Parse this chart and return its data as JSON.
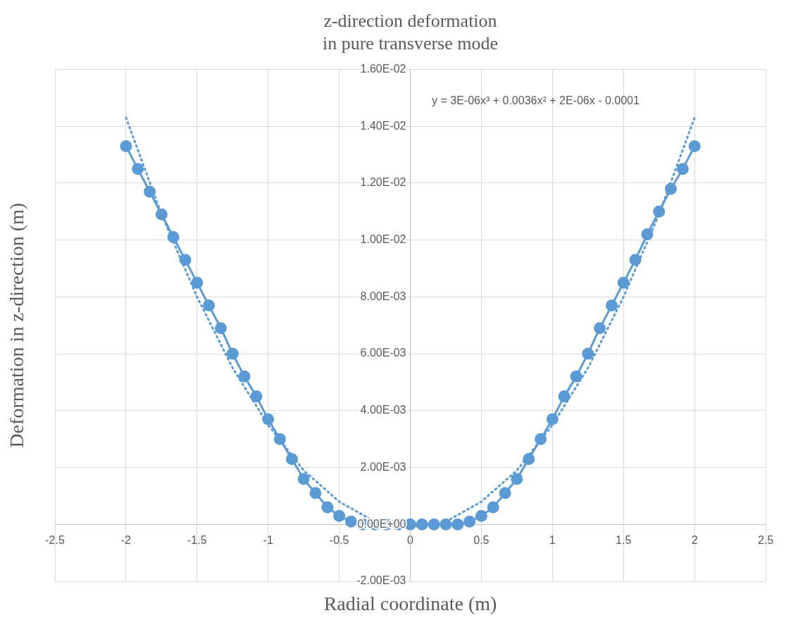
{
  "chart_data": {
    "type": "line",
    "title": "z-direction deformation\nin pure transverse mode",
    "xlabel": "Radial coordinate (m)",
    "ylabel": "Deformation in z-direction (m)",
    "annotations": [
      "y = 3E-06x³ + 0.0036x² + 2E-06x - 0.0001"
    ],
    "xlim": [
      -2.5,
      2.5
    ],
    "xticks": [
      -2.5,
      -2,
      -1.5,
      -1,
      -0.5,
      0,
      0.5,
      1,
      1.5,
      2,
      2.5
    ],
    "ylim": [
      -0.002,
      0.016
    ],
    "yticks": [
      {
        "value": -0.002,
        "label": "-2.00E-03"
      },
      {
        "value": 0,
        "label": "0.00E+00"
      },
      {
        "value": 0.002,
        "label": "2.00E-03"
      },
      {
        "value": 0.004,
        "label": "4.00E-03"
      },
      {
        "value": 0.006,
        "label": "6.00E-03"
      },
      {
        "value": 0.008,
        "label": "8.00E-03"
      },
      {
        "value": 0.01,
        "label": "1.00E-02"
      },
      {
        "value": 0.012,
        "label": "1.20E-02"
      },
      {
        "value": 0.014,
        "label": "1.40E-02"
      },
      {
        "value": 0.016,
        "label": "1.60E-02"
      }
    ],
    "grid": true,
    "legend": false,
    "marker": "circle",
    "line_style": "solid",
    "series": [
      {
        "color": "#5b9bd5",
        "x": [
          -2,
          -1.917,
          -1.833,
          -1.75,
          -1.667,
          -1.583,
          -1.5,
          -1.417,
          -1.333,
          -1.25,
          -1.167,
          -1.083,
          -1,
          -0.917,
          -0.833,
          -0.75,
          -0.667,
          -0.583,
          -0.5,
          -0.417,
          -0.333,
          -0.25,
          -0.167,
          -0.083,
          0,
          0.083,
          0.167,
          0.25,
          0.333,
          0.417,
          0.5,
          0.583,
          0.667,
          0.75,
          0.833,
          0.917,
          1,
          1.083,
          1.167,
          1.25,
          1.333,
          1.417,
          1.5,
          1.583,
          1.667,
          1.75,
          1.833,
          1.917,
          2
        ],
        "values": [
          0.0133,
          0.0125,
          0.0117,
          0.0109,
          0.0101,
          0.0093,
          0.0085,
          0.0077,
          0.0069,
          0.006,
          0.0052,
          0.0045,
          0.0037,
          0.003,
          0.0023,
          0.0016,
          0.0011,
          0.0006,
          0.0003,
          0.0001,
          0,
          0,
          0,
          0,
          0,
          0,
          0,
          0,
          0,
          0.0001,
          0.0003,
          0.0006,
          0.0011,
          0.0016,
          0.0023,
          0.003,
          0.0037,
          0.0045,
          0.0052,
          0.006,
          0.0069,
          0.0077,
          0.0085,
          0.0093,
          0.0102,
          0.011,
          0.0118,
          0.0125,
          0.0133
        ]
      },
      {
        "type": "line",
        "color": "#5b9bd5",
        "line_style": "dotted",
        "marker": "none",
        "x": [
          -2,
          -1.75,
          -1.5,
          -1.25,
          -1,
          -0.75,
          -0.5,
          -0.25,
          0,
          0.25,
          0.5,
          0.75,
          1,
          1.25,
          1.5,
          1.75,
          2
        ],
        "values": [
          0.0143,
          0.0109,
          0.008,
          0.0055,
          0.0035,
          0.0019,
          0.0008,
          0.0001,
          -0.0001,
          0.0001,
          0.0008,
          0.0019,
          0.0035,
          0.0055,
          0.008,
          0.0109,
          0.0143
        ]
      }
    ]
  }
}
